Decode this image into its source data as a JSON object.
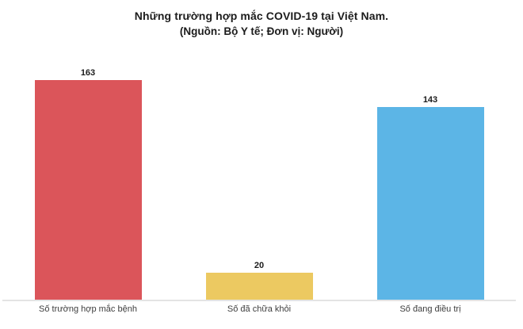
{
  "chart_data": {
    "type": "bar",
    "title": "Những trường hợp mắc COVID-19 tại Việt Nam.",
    "subtitle": "(Nguồn: Bộ Y tế; Đơn vị: Người)",
    "categories": [
      "Số trường hợp mắc bệnh",
      "Số đã chữa khỏi",
      "Số đang điều trị"
    ],
    "values": [
      163,
      20,
      143
    ],
    "series": [
      {
        "name": "Số trường hợp mắc bệnh",
        "value": 163,
        "color": "#db555a"
      },
      {
        "name": "Số đã chữa khỏi",
        "value": 20,
        "color": "#ecc961"
      },
      {
        "name": "Số đang điều trị",
        "value": 143,
        "color": "#5cb5e6"
      }
    ],
    "colors": [
      "#db555a",
      "#ecc961",
      "#5cb5e6"
    ],
    "ylim": [
      0,
      170
    ],
    "xlabel": "",
    "ylabel": "",
    "grid": false,
    "legend": "none",
    "value_labels_shown": true,
    "axis_line_color": "#e4e4e4",
    "background_color": "#ffffff"
  }
}
